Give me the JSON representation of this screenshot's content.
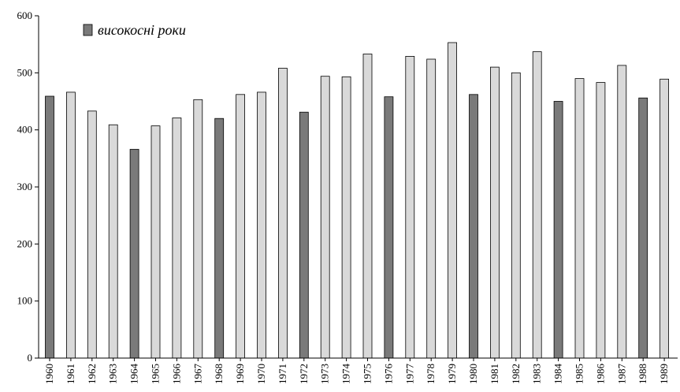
{
  "chart_data": {
    "type": "bar",
    "title": "",
    "xlabel": "",
    "ylabel": "",
    "ylim": [
      0,
      600
    ],
    "yticks": [
      0,
      100,
      200,
      300,
      400,
      500,
      600
    ],
    "grid": false,
    "legend": {
      "position": "top-left",
      "entries": [
        {
          "label": "високосні роки",
          "color": "#7a7a7a"
        }
      ]
    },
    "colors": {
      "regular": "#d9d9d9",
      "leap": "#7a7a7a",
      "outline": "#000000"
    },
    "categories": [
      "1960",
      "1961",
      "1962",
      "1963",
      "1964",
      "1965",
      "1966",
      "1967",
      "1968",
      "1969",
      "1970",
      "1971",
      "1972",
      "1973",
      "1974",
      "1975",
      "1976",
      "1977",
      "1978",
      "1979",
      "1980",
      "1981",
      "1982",
      "1983",
      "1984",
      "1985",
      "1986",
      "1987",
      "1988",
      "1989"
    ],
    "values": [
      459,
      466,
      433,
      409,
      366,
      407,
      421,
      453,
      420,
      462,
      466,
      508,
      431,
      494,
      493,
      533,
      458,
      529,
      524,
      553,
      462,
      510,
      500,
      537,
      450,
      490,
      483,
      513,
      456,
      489
    ],
    "leap": [
      true,
      false,
      false,
      false,
      true,
      false,
      false,
      false,
      true,
      false,
      false,
      false,
      true,
      false,
      false,
      false,
      true,
      false,
      false,
      false,
      true,
      false,
      false,
      false,
      true,
      false,
      false,
      false,
      true,
      false
    ]
  }
}
